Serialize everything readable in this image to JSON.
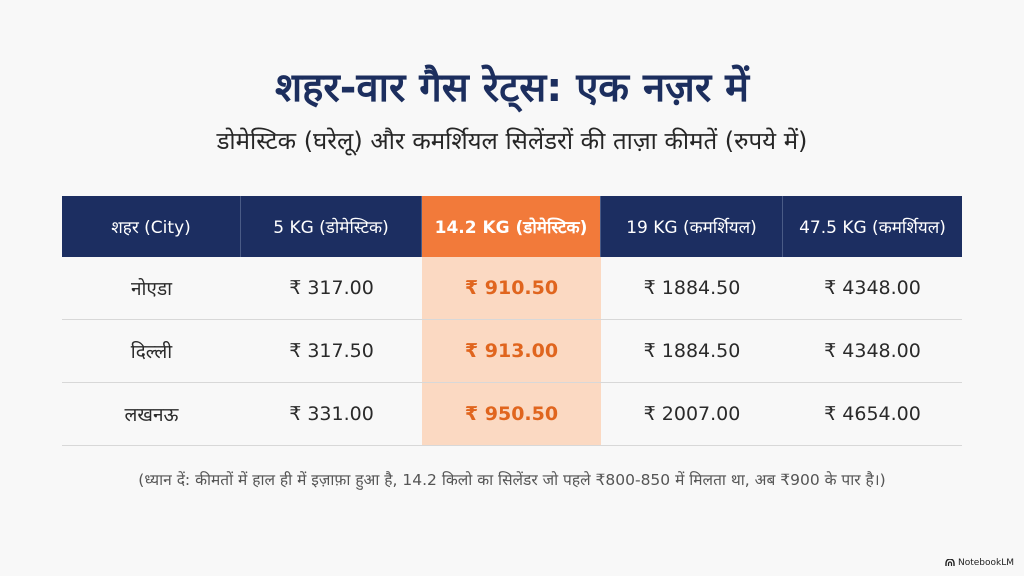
{
  "title": "शहर-वार गैस रेट्स: एक नज़र में",
  "subtitle": "डोमेस्टिक (घरेलू) और कमर्शियल सिलेंडरों की ताज़ा कीमतें (रुपये में)",
  "table": {
    "headers": [
      "शहर (City)",
      "5 KG (डोमेस्टिक)",
      "14.2 KG (डोमेस्टिक)",
      "19 KG (कमर्शियल)",
      "47.5 KG (कमर्शियल)"
    ],
    "highlight_column": 2,
    "rows": [
      [
        "नोएडा",
        "₹ 317.00",
        "₹ 910.50",
        "₹ 1884.50",
        "₹ 4348.00"
      ],
      [
        "दिल्ली",
        "₹ 317.50",
        "₹ 913.00",
        "₹ 1884.50",
        "₹ 4348.00"
      ],
      [
        "लखनऊ",
        "₹ 331.00",
        "₹ 950.50",
        "₹ 2007.00",
        "₹ 4654.00"
      ]
    ]
  },
  "note": "(ध्यान दें: कीमतों में हाल ही में इज़ाफ़ा हुआ है, 14.2 किलो का सिलेंडर जो पहले ₹800-850 में मिलता था, अब ₹900 के पार है।)",
  "brand": "NotebookLM",
  "colors": {
    "header_bg": "#1c2e61",
    "highlight_header": "#f27a3a",
    "highlight_cell": "#fbd9c2",
    "highlight_text": "#e0651e"
  }
}
